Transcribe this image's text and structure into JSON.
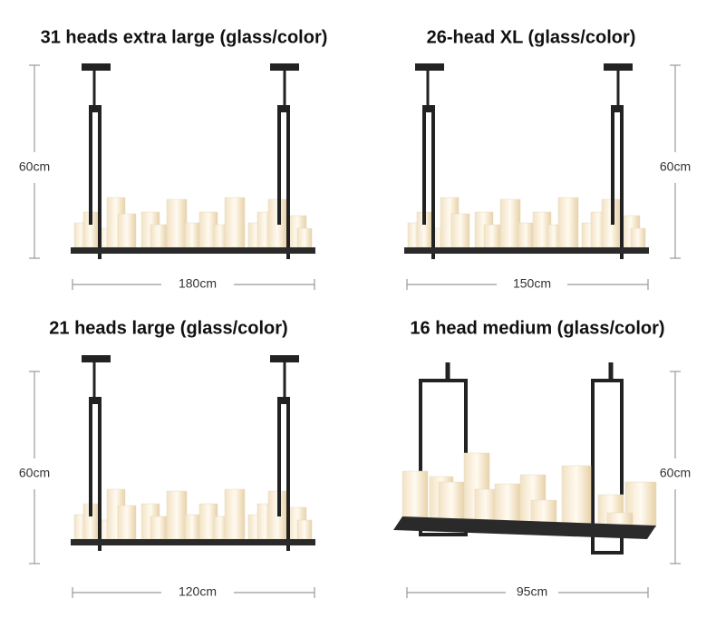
{
  "panels": [
    {
      "title": "31 heads extra large (glass/color)",
      "height": "60cm",
      "width": "180cm"
    },
    {
      "title": "26-head XL (glass/color)",
      "height": "60cm",
      "width": "150cm"
    },
    {
      "title": "21 heads large (glass/color)",
      "height": "60cm",
      "width": "120cm"
    },
    {
      "title": "16 head medium (glass/color)",
      "height": "60cm",
      "width": "95cm"
    }
  ]
}
